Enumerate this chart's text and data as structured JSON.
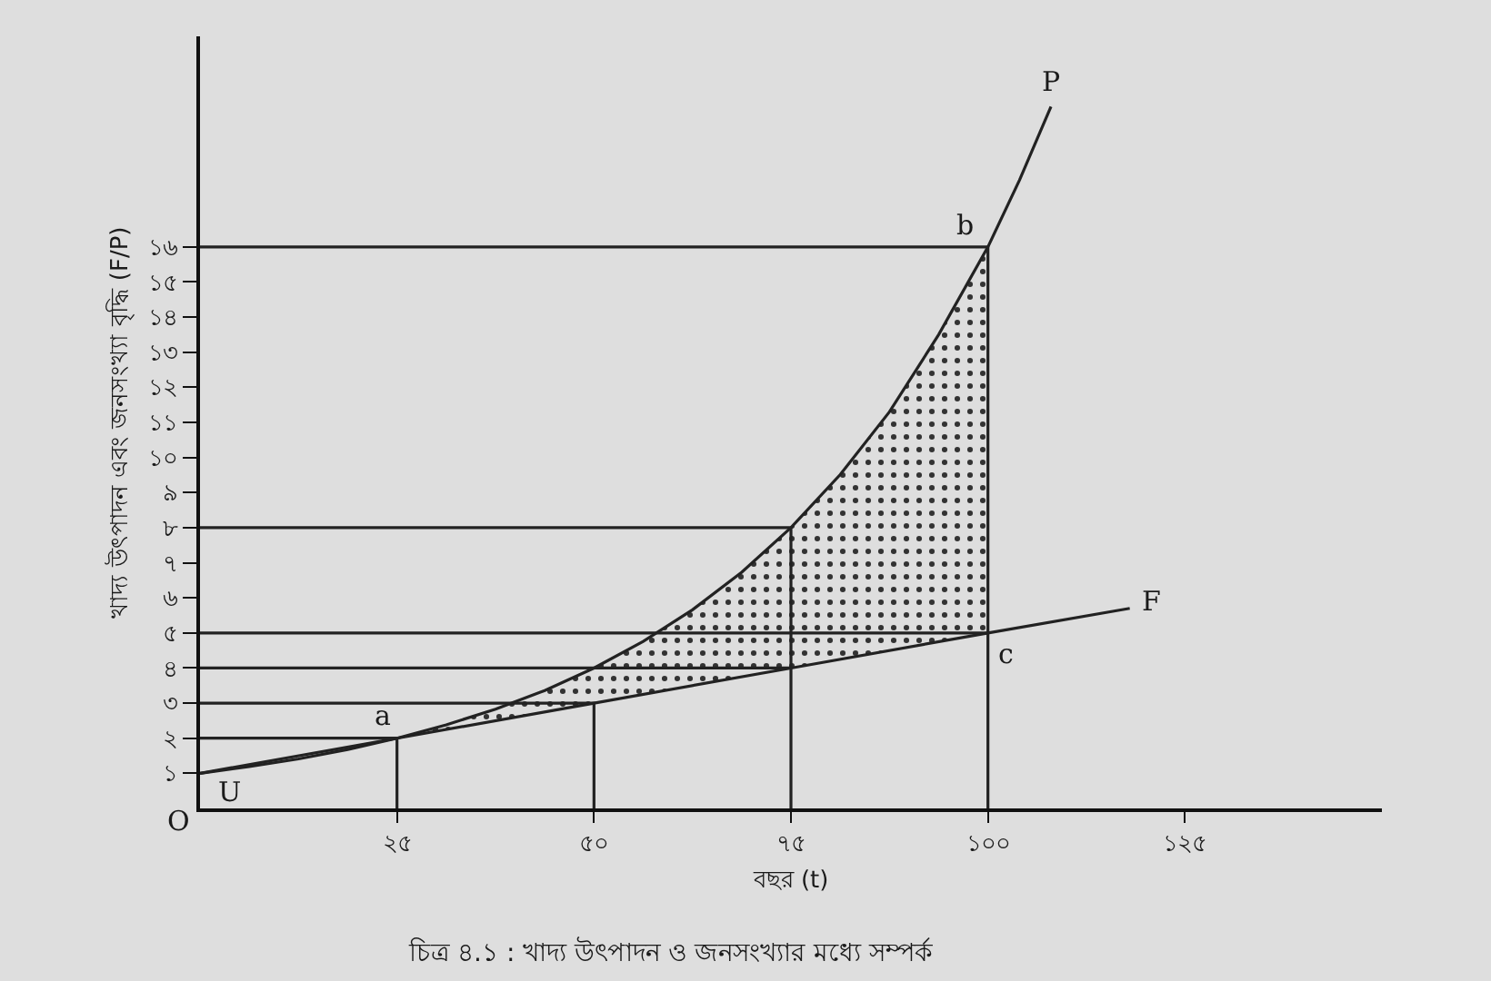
{
  "chart_data": {
    "type": "line",
    "title": "চিত্র ৪.১ : খাদ্য উৎপাদন ও জনসংখ্যার মধ্যে সম্পর্ক",
    "xlabel": "বছর (t)",
    "ylabel": "খাদ্য উৎপাদন এবং জনসংখ্যা বৃদ্ধি (F/P)",
    "series": [
      {
        "color": "#222222",
        "x": [
          0,
          6.25,
          12.5,
          18.75,
          25,
          31.25,
          37.5,
          43.75,
          50,
          56.25,
          62.5,
          68.75,
          75,
          81.25,
          87.5,
          93.75,
          100,
          104,
          108
        ],
        "values": [
          1,
          1.19,
          1.41,
          1.68,
          2,
          2.38,
          2.83,
          3.36,
          4,
          4.76,
          5.66,
          6.73,
          8,
          9.51,
          11.3,
          13.5,
          16,
          17.9,
          20
        ],
        "lower": [
          null,
          null,
          null,
          null,
          2,
          2.25,
          2.5,
          2.75,
          3,
          3.25,
          3.5,
          3.75,
          4,
          4.25,
          4.5,
          4.75,
          5,
          null,
          null
        ],
        "upper": [
          null,
          null,
          null,
          null,
          2,
          2.38,
          2.83,
          3.36,
          4,
          4.76,
          5.66,
          6.73,
          8,
          9.51,
          11.3,
          13.5,
          16,
          null,
          null
        ]
      },
      {
        "color": "#222222",
        "x": [
          0,
          25,
          50,
          75,
          100,
          118
        ],
        "values": [
          1,
          2,
          3,
          4,
          5,
          5.7
        ]
      },
      {
        "color": "#222222",
        "x": [
          0,
          100,
          100,
          null,
          0,
          75,
          75,
          null,
          0,
          100,
          null,
          0,
          75,
          null,
          0,
          50,
          50,
          null,
          0,
          25,
          25
        ],
        "values": [
          16,
          16,
          0,
          null,
          8,
          8,
          0,
          null,
          5,
          5,
          null,
          4,
          4,
          null,
          3,
          3,
          0,
          null,
          2,
          2,
          0
        ]
      }
    ],
    "annotations": [
      {
        "text": "P",
        "x": 108,
        "y": 20
      },
      {
        "text": "F",
        "x": 118,
        "y": 5.7
      },
      {
        "text": "b",
        "x": 100,
        "y": 16
      },
      {
        "text": "c",
        "x": 100,
        "y": 5
      },
      {
        "text": "a",
        "x": 25,
        "y": 2
      },
      {
        "text": "U",
        "x": 0,
        "y": 1
      },
      "O"
    ],
    "xlim": [
      0,
      150
    ],
    "ylim": [
      0,
      22
    ],
    "xticks": [
      {
        "value": 25,
        "label": "২৫"
      },
      {
        "value": 50,
        "label": "৫০"
      },
      {
        "value": 75,
        "label": "৭৫"
      },
      {
        "value": 100,
        "label": "১০০"
      },
      {
        "value": 125,
        "label": "১২৫"
      }
    ],
    "yticks": [
      {
        "value": 1,
        "label": "১"
      },
      {
        "value": 2,
        "label": "২"
      },
      {
        "value": 3,
        "label": "৩"
      },
      {
        "value": 4,
        "label": "৪"
      },
      {
        "value": 5,
        "label": "৫"
      },
      {
        "value": 6,
        "label": "৬"
      },
      {
        "value": 7,
        "label": "৭"
      },
      {
        "value": 8,
        "label": "৮"
      },
      {
        "value": 9,
        "label": "৯"
      },
      {
        "value": 10,
        "label": "১০"
      },
      {
        "value": 11,
        "label": "১১"
      },
      {
        "value": 12,
        "label": "১২"
      },
      {
        "value": 13,
        "label": "১৩"
      },
      {
        "value": 14,
        "label": "১৪"
      },
      {
        "value": 15,
        "label": "১৫"
      },
      {
        "value": 16,
        "label": "১৬"
      }
    ],
    "marker": "none",
    "line_style": "solid"
  }
}
